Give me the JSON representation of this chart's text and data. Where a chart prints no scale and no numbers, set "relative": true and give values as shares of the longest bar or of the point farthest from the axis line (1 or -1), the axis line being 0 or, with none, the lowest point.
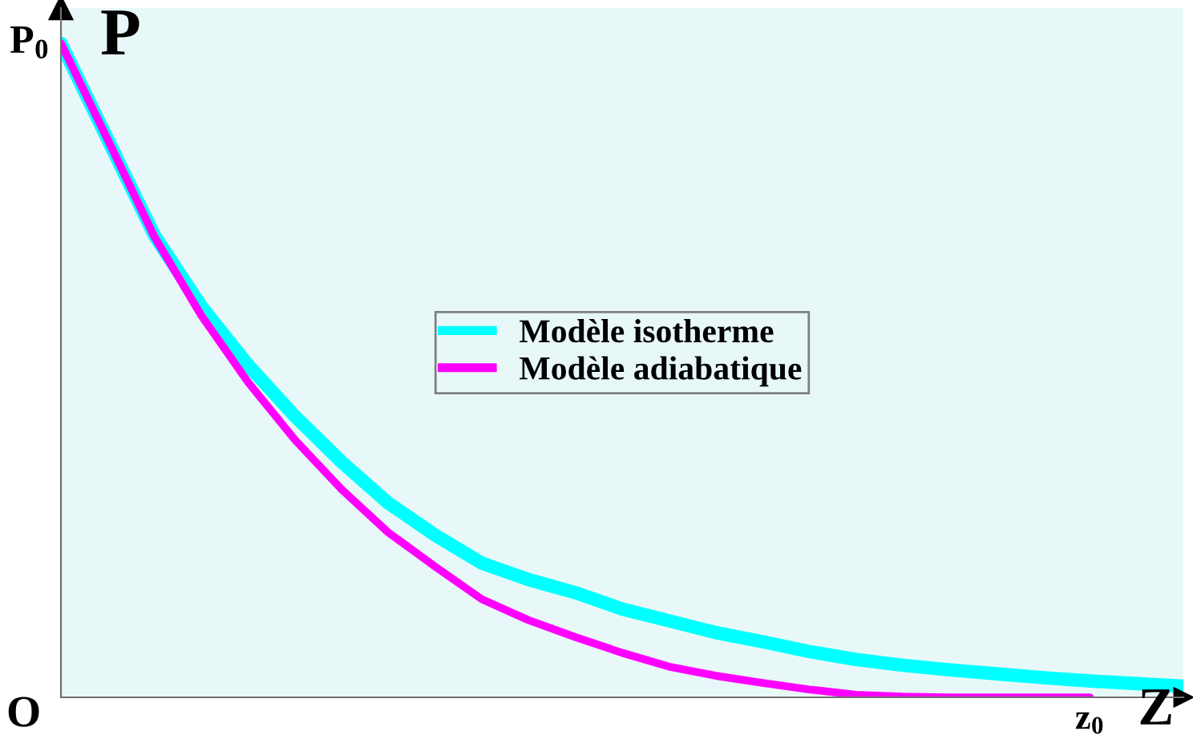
{
  "chart_data": {
    "type": "line",
    "xlabel": "Z",
    "ylabel": "P",
    "relative": true,
    "grid": false,
    "categories": [
      null,
      null,
      null,
      null,
      null,
      null,
      null,
      null,
      null,
      null,
      null,
      null,
      null,
      null,
      null,
      null,
      null,
      null,
      null,
      null,
      null,
      null,
      null,
      null,
      null
    ],
    "annotations": [
      "O",
      "P$_{0}$",
      "z$_{0}$"
    ],
    "series": [
      {
        "name": "Modèle isotherme",
        "color": "#00ffff",
        "values": [
          1,
          0.853,
          0.706,
          0.598,
          0.508,
          0.43,
          0.36,
          0.297,
          0.248,
          0.205,
          0.18,
          0.16,
          0.135,
          0.117,
          0.099,
          0.085,
          0.07,
          0.058,
          0.049,
          0.042,
          0.036,
          0.03,
          0.025,
          0.021,
          0.017
        ]
      },
      {
        "name": "Modèle adiabatique",
        "color": "#ff00ff",
        "values": [
          1,
          0.853,
          0.704,
          0.584,
          0.482,
          0.394,
          0.318,
          0.252,
          0.2,
          0.15,
          0.118,
          0.092,
          0.068,
          0.047,
          0.033,
          0.022,
          0.012,
          0.004,
          0.001,
          0,
          0,
          0,
          0,
          null,
          null
        ]
      }
    ],
    "legend": "center",
    "marker": "none",
    "line_style": "solid"
  }
}
